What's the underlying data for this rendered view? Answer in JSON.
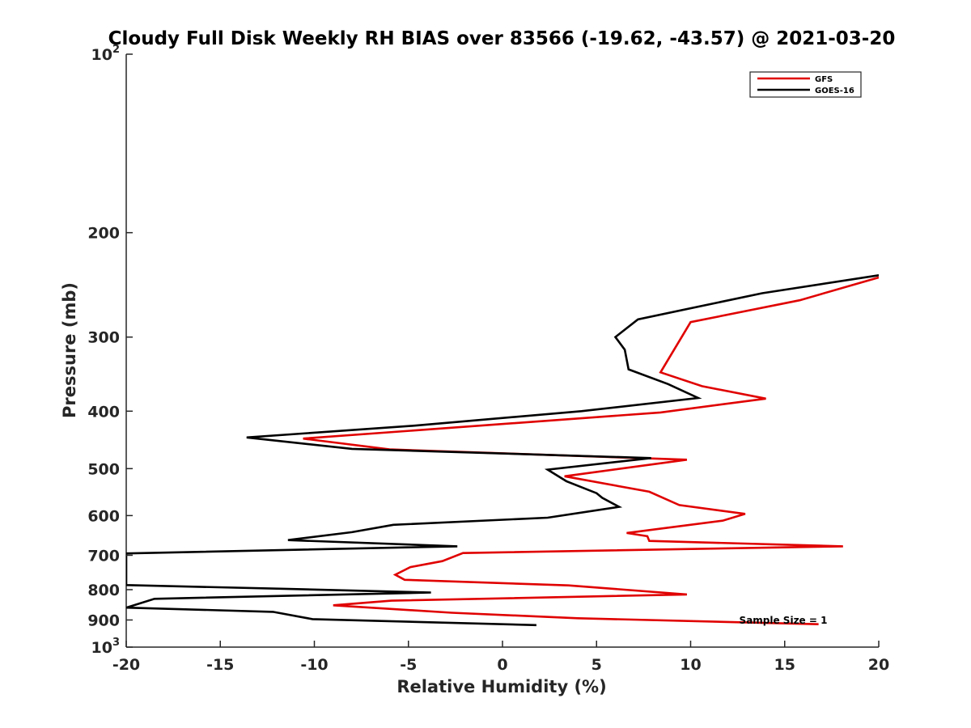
{
  "chart_data": {
    "type": "line",
    "title": "Cloudy Full Disk Weekly RH BIAS over 83566 (-19.62, -43.57) @ 2021-03-20",
    "xlabel": "Relative Humidity (%)",
    "ylabel": "Pressure (mb)",
    "xlim": [
      -20,
      20
    ],
    "ylim": [
      100,
      1000
    ],
    "yscale": "log",
    "y_reversed": true,
    "xticks": [
      "-20",
      "-15",
      "-10",
      "-5",
      "0",
      "5",
      "10",
      "15",
      "20"
    ],
    "yticks": [
      {
        "value": 100,
        "base": "10",
        "exp": "2"
      },
      {
        "value": 200,
        "label": "200"
      },
      {
        "value": 300,
        "label": "300"
      },
      {
        "value": 400,
        "label": "400"
      },
      {
        "value": 500,
        "label": "500"
      },
      {
        "value": 600,
        "label": "600"
      },
      {
        "value": 700,
        "label": "700"
      },
      {
        "value": 800,
        "label": "800"
      },
      {
        "value": 900,
        "label": "900"
      },
      {
        "value": 1000,
        "base": "10",
        "exp": "3"
      }
    ],
    "grid": false,
    "legend_position": "top-right",
    "annotation": "Sample Size = 1",
    "series": [
      {
        "name": "GFS",
        "color": "#e00000",
        "points": [
          [
            20.0,
            238
          ],
          [
            15.8,
            260
          ],
          [
            10.0,
            283
          ],
          [
            8.4,
            344
          ],
          [
            10.6,
            363
          ],
          [
            14.0,
            381
          ],
          [
            8.4,
            402
          ],
          [
            -10.6,
            445
          ],
          [
            -6.0,
            464
          ],
          [
            9.8,
            483
          ],
          [
            3.3,
            515
          ],
          [
            7.8,
            547
          ],
          [
            9.4,
            576
          ],
          [
            12.9,
            596
          ],
          [
            11.7,
            612
          ],
          [
            6.6,
            642
          ],
          [
            7.7,
            650
          ],
          [
            7.8,
            662
          ],
          [
            18.1,
            676
          ],
          [
            -2.1,
            694
          ],
          [
            -3.2,
            716
          ],
          [
            -4.9,
            733
          ],
          [
            -5.7,
            755
          ],
          [
            -5.2,
            770
          ],
          [
            3.5,
            787
          ],
          [
            9.8,
            815
          ],
          [
            -5.9,
            835
          ],
          [
            -9.0,
            850
          ],
          [
            -2.7,
            875
          ],
          [
            4.0,
            894
          ],
          [
            16.8,
            915
          ]
        ]
      },
      {
        "name": "GOES-16",
        "color": "#000000",
        "points": [
          [
            20.0,
            236
          ],
          [
            13.8,
            253
          ],
          [
            7.2,
            280
          ],
          [
            6.0,
            300
          ],
          [
            6.5,
            315
          ],
          [
            6.7,
            340
          ],
          [
            8.8,
            360
          ],
          [
            10.4,
            380
          ],
          [
            4.2,
            400
          ],
          [
            -4.6,
            423
          ],
          [
            -13.6,
            443
          ],
          [
            -8.0,
            463
          ],
          [
            7.9,
            480
          ],
          [
            2.4,
            502
          ],
          [
            3.4,
            525
          ],
          [
            5.0,
            550
          ],
          [
            5.3,
            560
          ],
          [
            6.2,
            580
          ],
          [
            2.4,
            605
          ],
          [
            -5.8,
            622
          ],
          [
            -8.0,
            640
          ],
          [
            -11.4,
            660
          ],
          [
            -2.4,
            676
          ],
          [
            -20.0,
            695
          ],
          [
            -20.0,
            786
          ],
          [
            -11.8,
            797
          ],
          [
            -3.8,
            809
          ],
          [
            -18.5,
            829
          ],
          [
            -20.0,
            858
          ],
          [
            -12.2,
            872
          ],
          [
            -10.1,
            897
          ],
          [
            1.8,
            918
          ]
        ]
      }
    ]
  }
}
